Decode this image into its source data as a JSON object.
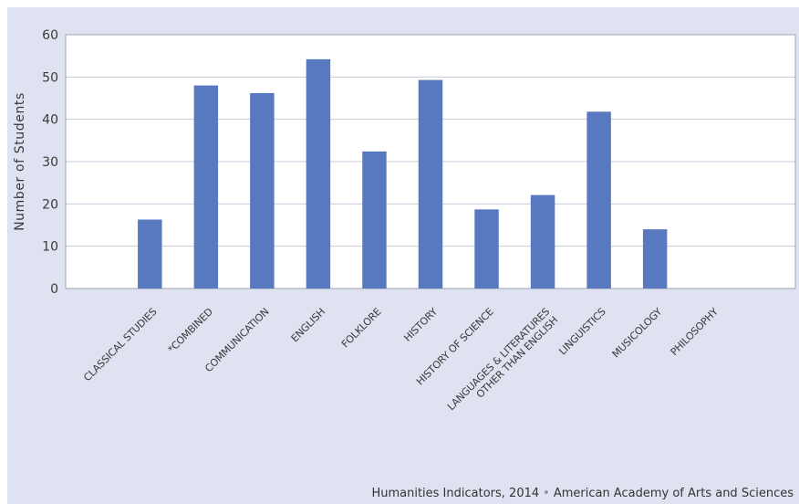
{
  "chart_data": {
    "type": "bar",
    "title": "",
    "xlabel": "",
    "ylabel": "Number of Students",
    "ylim": [
      0,
      60
    ],
    "yticks": [
      0,
      10,
      20,
      30,
      40,
      50,
      60
    ],
    "grid": true,
    "categories": [
      "",
      "CLASSICAL STUDIES",
      "*COMBINED",
      "COMMUNICATION",
      "ENGLISH",
      "FOLKLORE",
      "HISTORY",
      "HISTORY OF SCIENCE",
      "LANGUAGES & LITERATURES OTHER THAN ENGLISH",
      "LINGUISTICS",
      "MUSICOLOGY",
      "PHILOSOPHY",
      ""
    ],
    "category_lines": [
      [],
      [
        "CLASSICAL STUDIES"
      ],
      [
        "*COMBINED"
      ],
      [
        "COMMUNICATION"
      ],
      [
        "ENGLISH"
      ],
      [
        "FOLKLORE"
      ],
      [
        "HISTORY"
      ],
      [
        "HISTORY OF SCIENCE"
      ],
      [
        "LANGUAGES & LITERATURES",
        "OTHER THAN ENGLISH"
      ],
      [
        "LINGUISTICS"
      ],
      [
        "MUSICOLOGY"
      ],
      [
        "PHILOSOPHY"
      ],
      []
    ],
    "values": [
      null,
      16.3,
      48,
      46.2,
      54.2,
      32.4,
      49.3,
      18.7,
      22.1,
      41.8,
      14,
      0,
      null
    ],
    "bar_color": "#5878bf",
    "grid_color": "#c7cbd9",
    "axis_color": "#9ea3b8"
  },
  "source": {
    "left": "Humanities Indicators, 2014",
    "separator": "•",
    "right": "American Academy of Arts and Sciences"
  }
}
